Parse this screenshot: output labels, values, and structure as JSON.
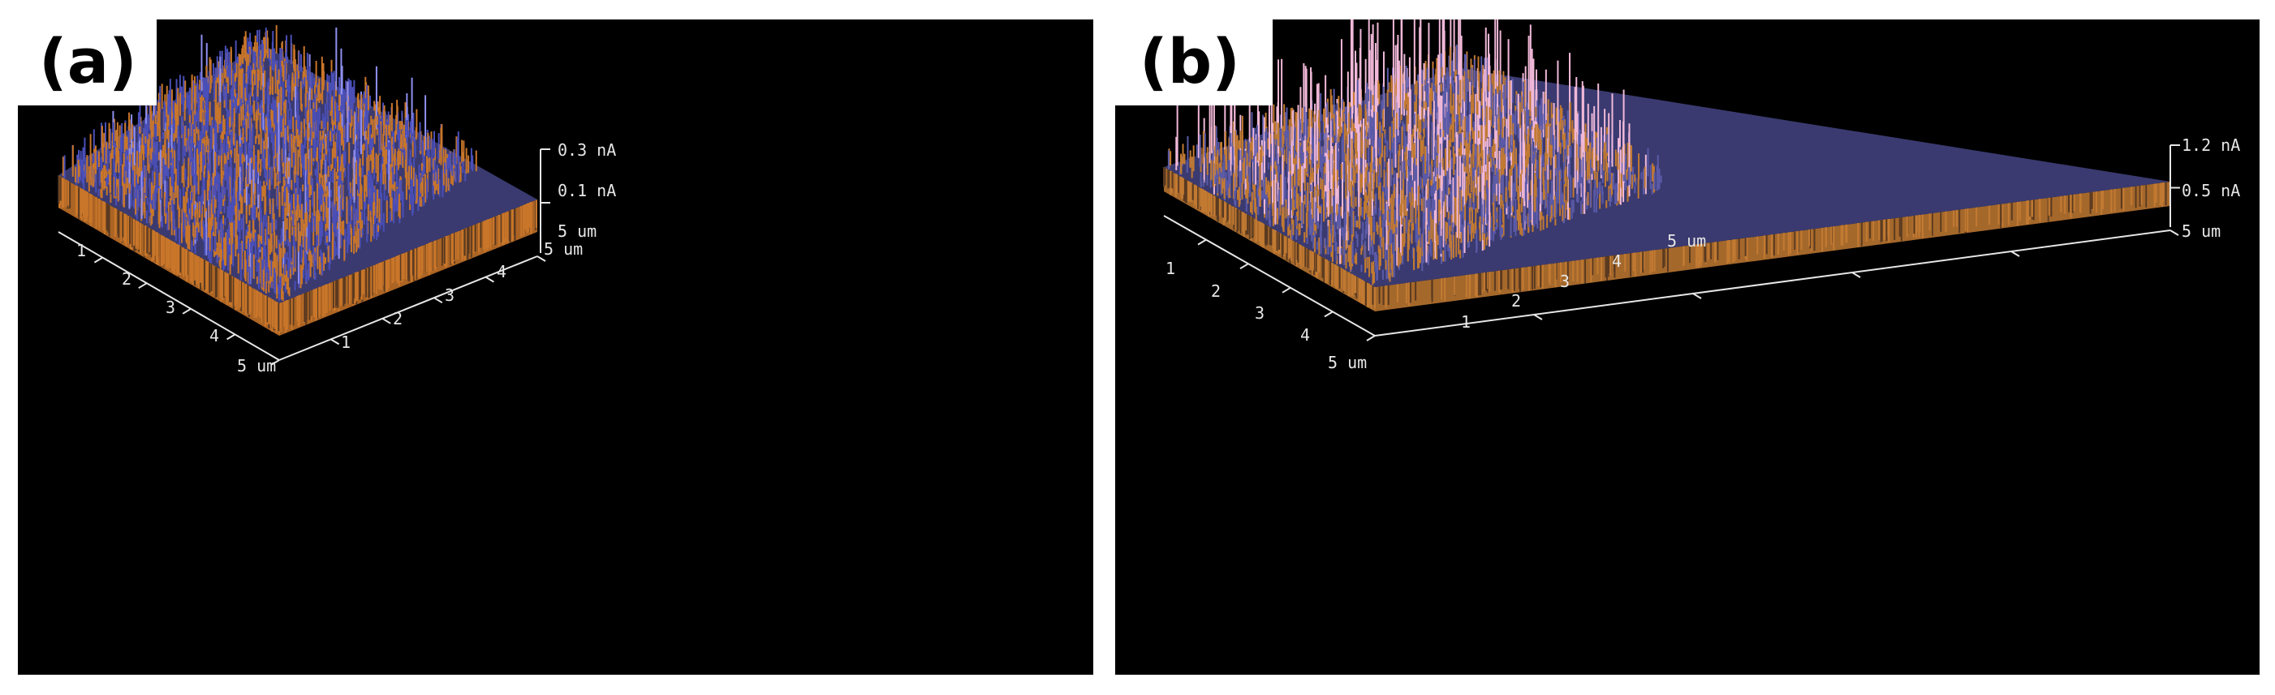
{
  "panels": [
    {
      "label": "(a)",
      "z_scale": [
        "0.3 nA",
        "0.1 nA"
      ],
      "x_ticks": [
        "1",
        "2",
        "3",
        "4",
        "5 um"
      ],
      "y_ticks": [
        "1",
        "2",
        "3",
        "4",
        "5 um"
      ],
      "z_corner": "5 um",
      "colors": {
        "base": "#c9762a",
        "mid": "#4a4fb8",
        "peak": "#8f8ff0"
      }
    },
    {
      "label": "(b)",
      "z_scale": [
        "1.2 nA",
        "0.5 nA"
      ],
      "x_ticks": [
        "1",
        "2",
        "3",
        "4",
        "5 um"
      ],
      "y_ticks": [
        "1",
        "2",
        "3",
        "4",
        "5 um"
      ],
      "z_corner": "5 um",
      "colors": {
        "base": "#c27a32",
        "mid": "#5a5aa8",
        "peak": "#f0b8d8"
      }
    }
  ]
}
